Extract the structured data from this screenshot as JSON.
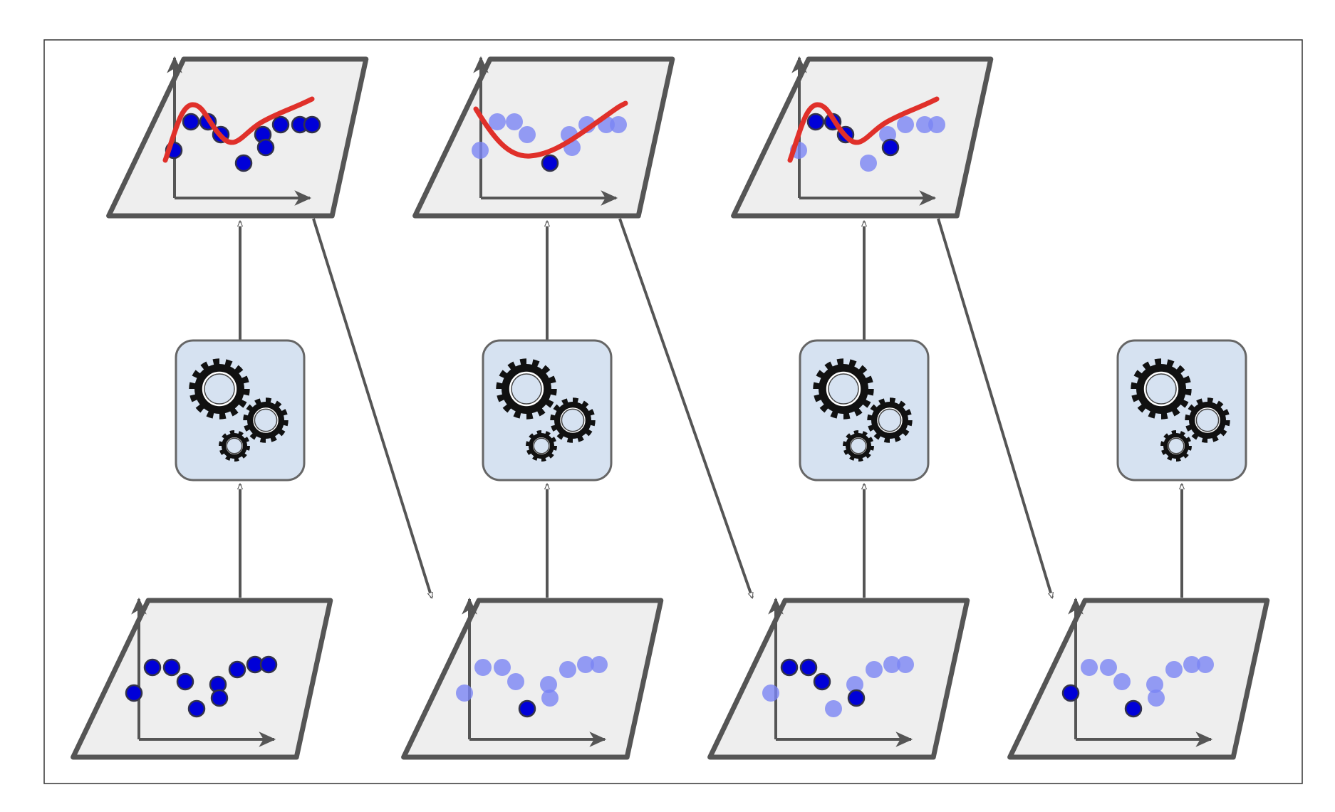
{
  "colors": {
    "page_background": "#ffffff",
    "frame_border": "#333333",
    "panel_fill": "#eeeeee",
    "panel_stroke": "#555555",
    "axis_stroke": "#555555",
    "arrow_stroke": "#555555",
    "learner_fill": "#d6e2f1",
    "learner_stroke": "#666666",
    "gear_fill": "#111111",
    "fit_curve": "#e0302a",
    "point_dark": "#0000d8",
    "point_light": "#7b84f4"
  },
  "icons": {
    "learner": "gears-icon",
    "axes": "axes-icon",
    "flow": "arrow-icon"
  },
  "stages": [
    {
      "name": "stage-1",
      "has_prediction": true,
      "training_points": [
        "dark",
        "dark",
        "dark",
        "dark",
        "dark",
        "dark",
        "dark",
        "dark",
        "dark",
        "dark"
      ],
      "prediction_points": [
        "dark",
        "dark",
        "dark",
        "dark",
        "dark",
        "dark",
        "dark",
        "dark",
        "dark",
        "dark"
      ],
      "curve_shape": "wave"
    },
    {
      "name": "stage-2",
      "has_prediction": true,
      "training_points": [
        "light",
        "light",
        "light",
        "light",
        "dark",
        "light",
        "light",
        "light",
        "light",
        "light"
      ],
      "prediction_points": [
        "light",
        "light",
        "light",
        "light",
        "dark",
        "light",
        "light",
        "light",
        "light",
        "light"
      ],
      "curve_shape": "valley"
    },
    {
      "name": "stage-3",
      "has_prediction": true,
      "training_points": [
        "light",
        "dark",
        "dark",
        "dark",
        "light",
        "light",
        "dark",
        "light",
        "light",
        "light"
      ],
      "prediction_points": [
        "light",
        "dark",
        "dark",
        "dark",
        "light",
        "light",
        "dark",
        "light",
        "light",
        "light"
      ],
      "curve_shape": "wave"
    },
    {
      "name": "stage-4",
      "has_prediction": false,
      "training_points": [
        "dark",
        "light",
        "light",
        "light",
        "dark",
        "light",
        "light",
        "light",
        "light",
        "light"
      ],
      "prediction_points": [],
      "curve_shape": "none"
    }
  ],
  "sample_order": [
    0,
    1,
    2,
    3,
    4,
    5,
    6,
    7,
    8,
    9
  ]
}
